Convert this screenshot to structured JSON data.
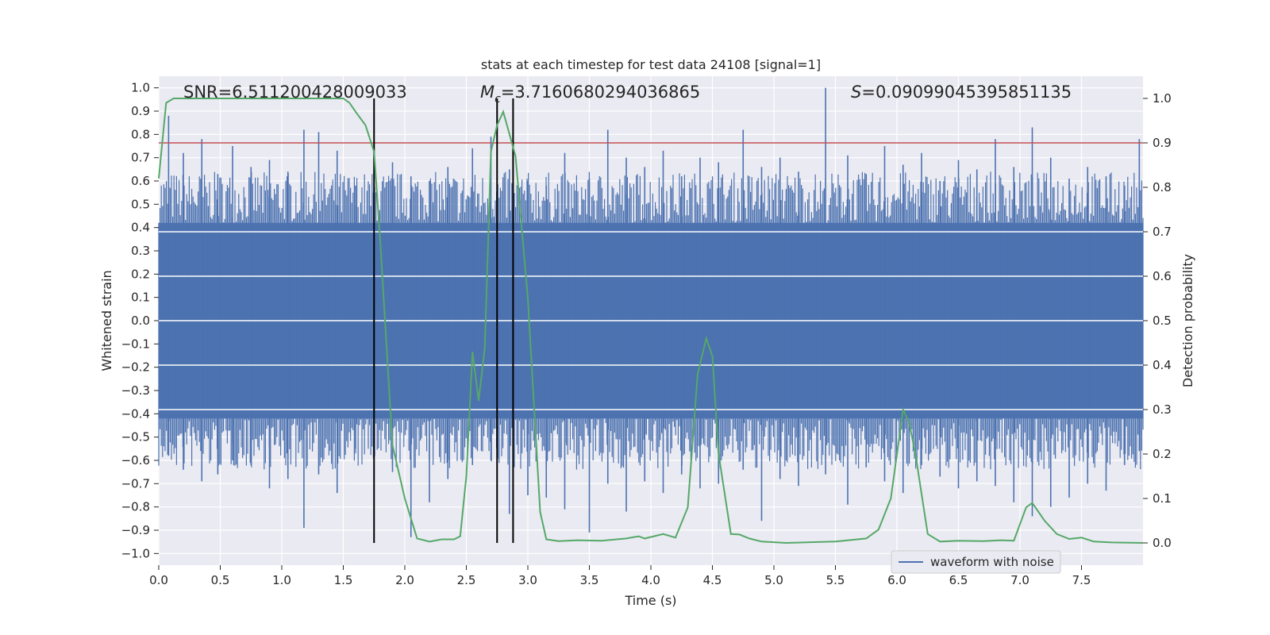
{
  "chart_data": {
    "type": "line",
    "title": "stats at each timestep for test data 24108 [signal=1]",
    "xlabel": "Time (s)",
    "ylabel": "Whitened strain",
    "ylabel_right": "Detection probability",
    "xlim": [
      0,
      8
    ],
    "ylim": [
      -1.05,
      1.05
    ],
    "ylim_right": [
      -0.05,
      1.05
    ],
    "xticks": [
      "0.0",
      "0.5",
      "1.0",
      "1.5",
      "2.0",
      "2.5",
      "3.0",
      "3.5",
      "4.0",
      "4.5",
      "5.0",
      "5.5",
      "6.0",
      "6.5",
      "7.0",
      "7.5"
    ],
    "yticks": [
      "1.0",
      "0.9",
      "0.8",
      "0.7",
      "0.6",
      "0.5",
      "0.4",
      "0.3",
      "0.2",
      "0.1",
      "0.0",
      "−0.1",
      "−0.2",
      "−0.3",
      "−0.4",
      "−0.5",
      "−0.6",
      "−0.7",
      "−0.8",
      "−0.9",
      "−1.0"
    ],
    "yticks_right": [
      "1.0",
      "0.9",
      "0.8",
      "0.7",
      "0.6",
      "0.5",
      "0.4",
      "0.3",
      "0.2",
      "0.1",
      "0.0"
    ],
    "grid": true,
    "legend": {
      "position": "lower-right",
      "entries": [
        "waveform with noise"
      ]
    },
    "annotations": {
      "snr": "SNR=6.511200428009033",
      "mc_symbol": "M",
      "mc_subscript": "c",
      "mc_value": "=3.7160680294036865",
      "s_symbol": "S",
      "s_value": "=0.09099045395851135"
    },
    "threshold": {
      "y_right": 0.9,
      "color": "#c44e52"
    },
    "vertical_markers_x": [
      1.75,
      2.75,
      2.88
    ],
    "waveform": {
      "name": "waveform with noise",
      "color": "#4c72b0",
      "dense_band": [
        -0.42,
        0.42
      ],
      "spikes_x": [
        0.08,
        0.2,
        0.35,
        0.48,
        0.6,
        0.75,
        0.9,
        1.05,
        1.18,
        1.3,
        1.45,
        1.6,
        1.75,
        1.9,
        2.05,
        2.2,
        2.35,
        2.55,
        2.7,
        2.85,
        3.0,
        3.15,
        3.3,
        3.5,
        3.65,
        3.8,
        3.95,
        4.1,
        4.25,
        4.4,
        4.55,
        4.75,
        4.9,
        5.05,
        5.2,
        5.42,
        5.6,
        5.75,
        5.9,
        6.05,
        6.2,
        6.35,
        6.5,
        6.65,
        6.8,
        6.95,
        7.1,
        7.25,
        7.4,
        7.55,
        7.7,
        7.85,
        7.97
      ],
      "spikes_top": [
        0.88,
        0.72,
        0.78,
        0.63,
        0.75,
        0.66,
        0.69,
        0.64,
        0.82,
        0.81,
        0.73,
        0.58,
        0.55,
        0.68,
        0.62,
        0.6,
        0.66,
        0.74,
        0.79,
        0.65,
        0.6,
        0.58,
        0.72,
        0.61,
        0.82,
        0.7,
        0.66,
        0.73,
        0.62,
        0.7,
        0.68,
        0.82,
        0.66,
        0.7,
        0.64,
        1.0,
        0.71,
        0.63,
        0.75,
        0.67,
        0.72,
        0.6,
        0.69,
        0.65,
        0.78,
        0.66,
        0.83,
        0.7,
        0.61,
        0.66,
        0.62,
        0.58,
        0.78
      ],
      "spikes_bottom": [
        -0.58,
        -0.64,
        -0.69,
        -0.66,
        -0.6,
        -0.62,
        -0.72,
        -0.68,
        -0.89,
        -0.66,
        -0.74,
        -0.55,
        -0.58,
        -0.65,
        -0.93,
        -0.78,
        -0.68,
        -0.62,
        -0.6,
        -0.83,
        -0.75,
        -0.76,
        -0.81,
        -0.91,
        -0.7,
        -0.82,
        -0.69,
        -0.74,
        -0.66,
        -0.72,
        -0.7,
        -0.64,
        -0.86,
        -0.68,
        -0.71,
        -0.66,
        -0.79,
        -0.63,
        -0.69,
        -0.74,
        -0.62,
        -0.67,
        -0.72,
        -0.69,
        -0.71,
        -0.78,
        -0.84,
        -0.8,
        -0.76,
        -0.7,
        -0.73,
        -0.62,
        -0.56
      ]
    },
    "detection_probability": {
      "color": "#55a868",
      "x": [
        0.0,
        0.06,
        0.12,
        0.5,
        1.0,
        1.5,
        1.55,
        1.6,
        1.68,
        1.75,
        1.8,
        1.9,
        2.0,
        2.1,
        2.2,
        2.3,
        2.4,
        2.45,
        2.5,
        2.55,
        2.6,
        2.65,
        2.7,
        2.75,
        2.8,
        2.85,
        2.9,
        3.0,
        3.1,
        3.15,
        3.25,
        3.4,
        3.6,
        3.8,
        3.9,
        3.95,
        4.1,
        4.2,
        4.3,
        4.38,
        4.45,
        4.5,
        4.55,
        4.65,
        4.72,
        4.8,
        4.9,
        5.1,
        5.5,
        5.75,
        5.85,
        5.95,
        6.05,
        6.1,
        6.15,
        6.25,
        6.35,
        6.5,
        6.7,
        6.85,
        6.95,
        7.05,
        7.1,
        7.2,
        7.3,
        7.4,
        7.5,
        7.6,
        7.75,
        8.0
      ],
      "y": [
        0.82,
        0.99,
        1.0,
        1.0,
        1.0,
        1.0,
        0.99,
        0.97,
        0.94,
        0.88,
        0.68,
        0.22,
        0.1,
        0.01,
        0.003,
        0.008,
        0.008,
        0.015,
        0.15,
        0.43,
        0.32,
        0.44,
        0.88,
        0.94,
        0.97,
        0.92,
        0.87,
        0.55,
        0.07,
        0.008,
        0.004,
        0.006,
        0.005,
        0.01,
        0.015,
        0.01,
        0.02,
        0.012,
        0.08,
        0.38,
        0.46,
        0.42,
        0.2,
        0.02,
        0.019,
        0.01,
        0.003,
        0.0,
        0.003,
        0.01,
        0.03,
        0.1,
        0.3,
        0.27,
        0.2,
        0.02,
        0.003,
        0.005,
        0.004,
        0.006,
        0.005,
        0.08,
        0.09,
        0.05,
        0.02,
        0.009,
        0.012,
        0.003,
        0.001,
        0.0
      ]
    }
  }
}
